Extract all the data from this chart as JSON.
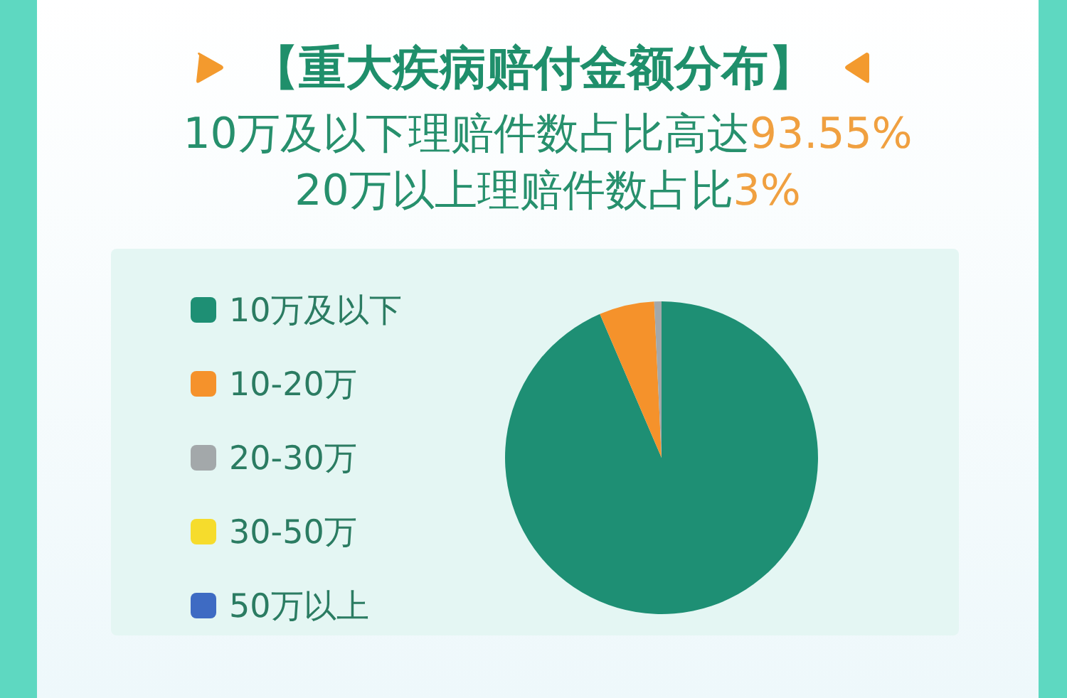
{
  "chart_data": {
    "type": "pie",
    "title": "【重大疾病赔付金额分布】",
    "subtitle": "10万及以下理赔件数占比高达93.55%\n20万以上理赔件数占比3%",
    "categories": [
      "10万及以下",
      "10-20万",
      "20-30万",
      "30-50万",
      "50万以上"
    ],
    "values": [
      93.55,
      5.7,
      0.75,
      null,
      null
    ],
    "colors": [
      "#1e8f74",
      "#f5922b",
      "#a3a8aa",
      "#f6dc2c",
      "#3e6bc3"
    ],
    "legend": "left"
  }
}
